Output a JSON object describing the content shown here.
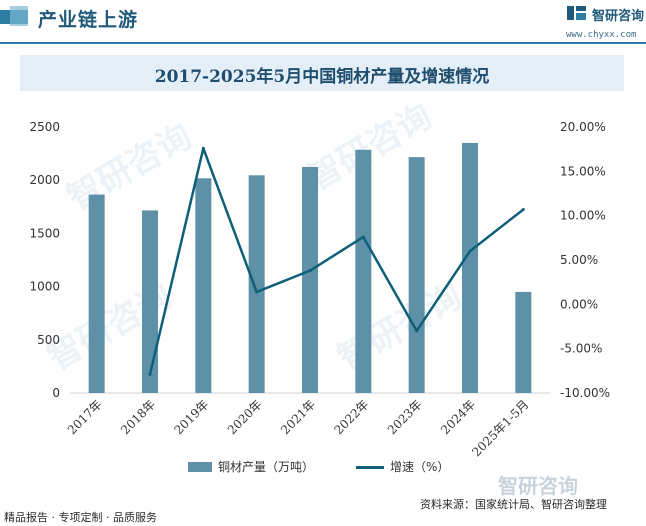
{
  "header": {
    "title": "产业链上游",
    "logo_text": "智研咨询",
    "logo_url": "www.chyxx.com"
  },
  "watermark": {
    "text": "智研咨询",
    "brand": "智研咨询"
  },
  "footer": {
    "left": "精品报告 · 专项定制 · 品质服务",
    "source": "资料来源：国家统计局、智研咨询整理"
  },
  "colors": {
    "bar": "#5e90a8",
    "line": "#0e5f78",
    "title_band": "#e3eef6",
    "accent": "#2e7ea3"
  },
  "chart_data": {
    "type": "bar",
    "title": "2017-2025年5月中国铜材产量及增速情况",
    "categories": [
      "2017年",
      "2018年",
      "2019年",
      "2020年",
      "2021年",
      "2022年",
      "2023年",
      "2024年",
      "2025年1-5月"
    ],
    "series": [
      {
        "name": "铜材产量（万吨）",
        "type": "bar",
        "axis": "left",
        "values": [
          1865,
          1716,
          2018,
          2046,
          2124,
          2286,
          2217,
          2350,
          950
        ]
      },
      {
        "name": "增速（%）",
        "type": "line",
        "axis": "right",
        "values": [
          null,
          -7.9,
          17.6,
          1.4,
          3.8,
          7.6,
          -3.0,
          6.0,
          10.7
        ]
      }
    ],
    "y_left": {
      "ylim": [
        0,
        2500
      ],
      "ticks": [
        "0",
        "500",
        "1000",
        "1500",
        "2000",
        "2500"
      ]
    },
    "y_right": {
      "ylim": [
        -10,
        20
      ],
      "ticks": [
        "-10.00%",
        "-5.00%",
        "0.00%",
        "5.00%",
        "10.00%",
        "15.00%",
        "20.00%"
      ]
    },
    "grid": false,
    "legend": "bottom"
  }
}
